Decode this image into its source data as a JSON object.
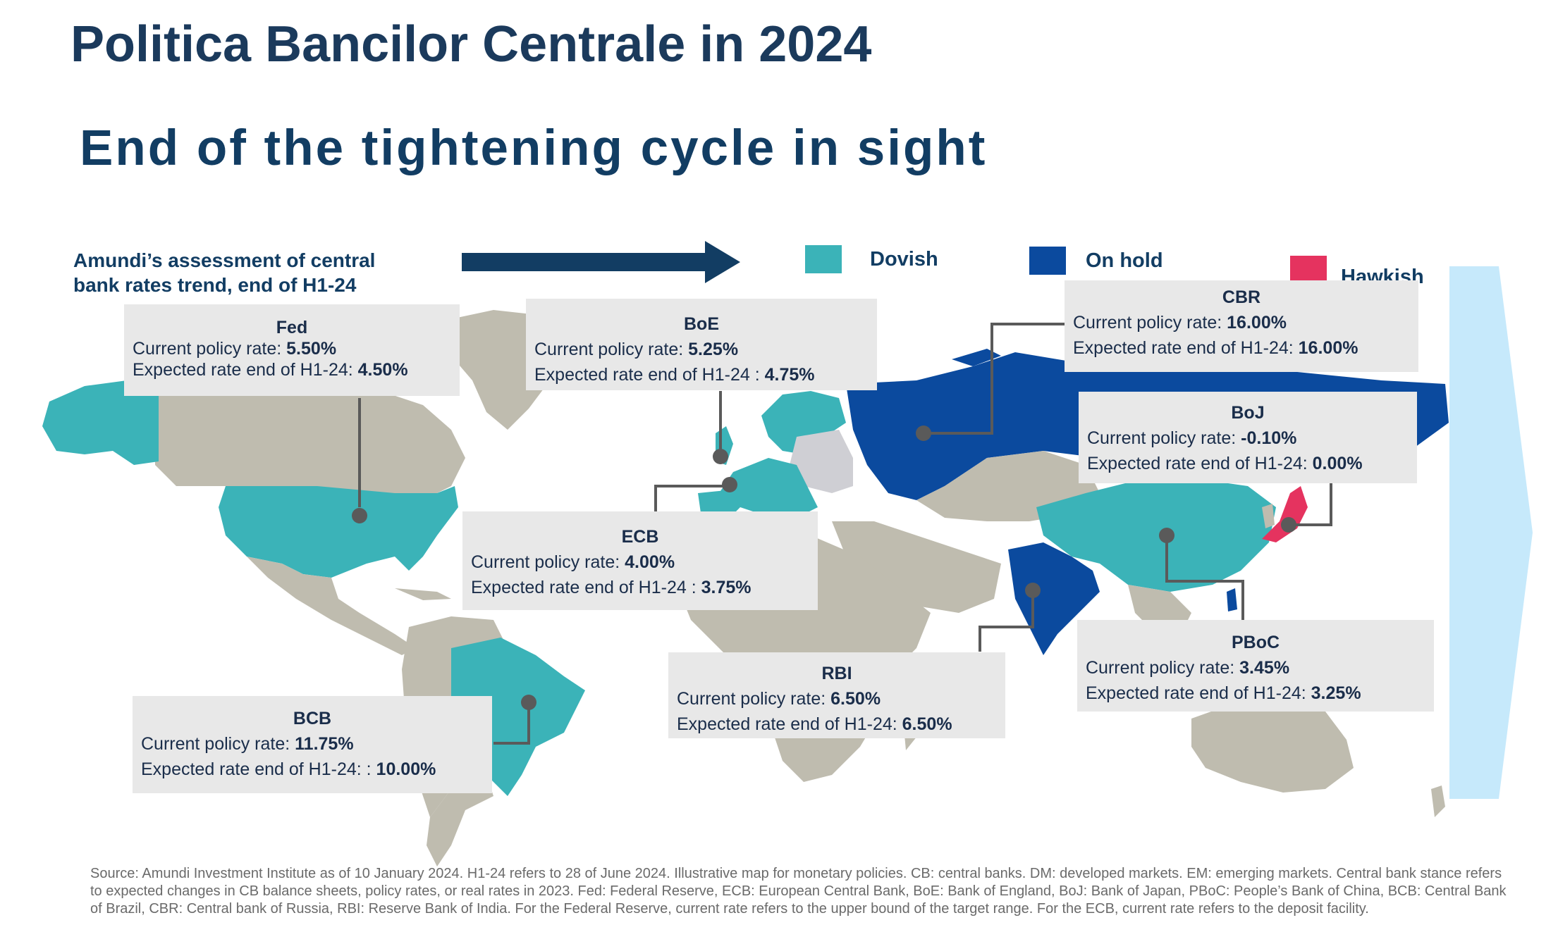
{
  "title": "Politica Bancilor Centrale in 2024",
  "subtitle": "End of the tightening cycle in sight",
  "assessment": {
    "line1": "Amundi’s assessment of central",
    "line2": "bank rates trend, end of H1-24"
  },
  "legend": [
    {
      "label": "Dovish",
      "color": "#3bb3b8"
    },
    {
      "label": "On hold",
      "color": "#0b4a9e"
    },
    {
      "label": "Hawkish",
      "color": "#e5335f"
    }
  ],
  "colors": {
    "neutral_land": "#bfbcaf",
    "grey_europe": "#cfcfd4",
    "box_bg": "#e8e8e8",
    "title": "#1b3a5c",
    "arrow": "#123d63",
    "side_arrow": "#c6e9fb"
  },
  "labels": {
    "current": "Current policy rate:",
    "expected": "Expected rate end of H1-24:"
  },
  "banks": {
    "fed": {
      "name": "Fed",
      "current_label": "Current policy rate:",
      "current": "5.50%",
      "expected_label": "Expected rate end of H1-24:",
      "expected": "4.50%",
      "stance": "Dovish"
    },
    "boe": {
      "name": "BoE",
      "current_label": "Current policy rate:",
      "current": "5.25%",
      "expected_label": "Expected rate end of H1-24 :",
      "expected": "4.75%",
      "stance": "Dovish"
    },
    "cbr": {
      "name": "CBR",
      "current_label": "Current policy rate:",
      "current": "16.00%",
      "expected_label": "Expected rate end of H1-24:",
      "expected": "16.00%",
      "stance": "On hold"
    },
    "boj": {
      "name": "BoJ",
      "current_label": "Current policy rate:",
      "current": "-0.10%",
      "expected_label": "Expected rate end of H1-24:",
      "expected": "0.00%",
      "stance": "Hawkish"
    },
    "ecb": {
      "name": "ECB",
      "current_label": "Current policy rate:",
      "current": "4.00%",
      "expected_label": "Expected rate end of H1-24 :",
      "expected": "3.75%",
      "stance": "Dovish"
    },
    "pboc": {
      "name": "PBoC",
      "current_label": "Current policy rate:",
      "current": "3.45%",
      "expected_label": "Expected rate end of H1-24:",
      "expected": "3.25%",
      "stance": "Dovish"
    },
    "rbi": {
      "name": "RBI",
      "current_label": "Current policy rate:",
      "current": "6.50%",
      "expected_label": "Expected rate end of H1-24:",
      "expected": "6.50%",
      "stance": "On hold"
    },
    "bcb": {
      "name": "BCB",
      "current_label": "Current policy rate:",
      "current": "11.75%",
      "expected_label": "Expected rate end of H1-24: :",
      "expected": "10.00%",
      "stance": "Dovish"
    }
  },
  "source": "Source: Amundi Investment Institute as of 10 January 2024. H1-24 refers to 28 of June 2024. Illustrative map for monetary policies. CB: central banks. DM: developed markets. EM: emerging markets. Central bank stance refers to expected changes in CB balance sheets, policy rates, or real rates in 2023. Fed: Federal Reserve, ECB: European Central Bank, BoE: Bank of England, BoJ: Bank of Japan, PBoC: People’s Bank of China, BCB: Central Bank of Brazil, CBR: Central bank of Russia, RBI: Reserve Bank of India. For the Federal Reserve, current rate refers to the upper bound of the target range. For the ECB, current rate refers to the deposit facility."
}
